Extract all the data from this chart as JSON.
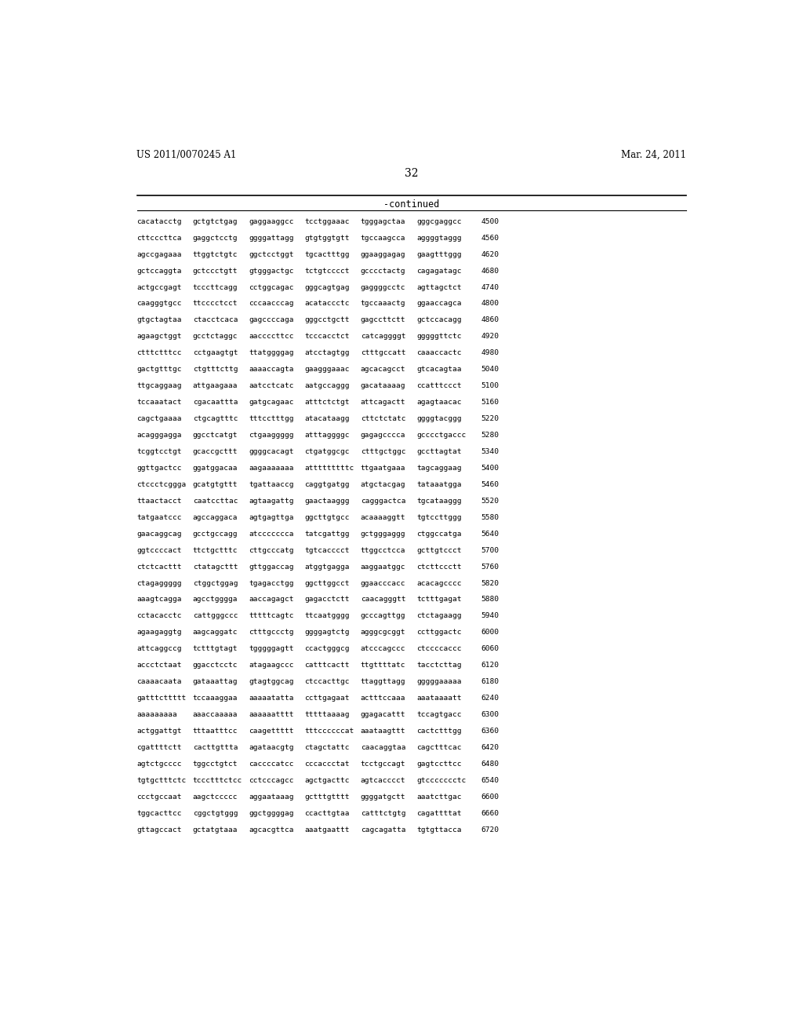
{
  "header_left": "US 2011/0070245 A1",
  "header_right": "Mar. 24, 2011",
  "page_number": "32",
  "continued_label": "-continued",
  "background_color": "#ffffff",
  "text_color": "#000000",
  "sequence_lines": [
    [
      "cacatacctg",
      "gctgtctgag",
      "gaggaaggcc",
      "tcctggaaac",
      "tgggagctaa",
      "gggcgaggcc",
      "4500"
    ],
    [
      "cttcccttca",
      "gaggctcctg",
      "ggggattagg",
      "gtgtggtgtt",
      "tgccaagcca",
      "aggggtaggg",
      "4560"
    ],
    [
      "agccgagaaa",
      "ttggtctgtc",
      "ggctcctggt",
      "tgcactttgg",
      "ggaaggagag",
      "gaagtttggg",
      "4620"
    ],
    [
      "gctccaggta",
      "gctccctgtt",
      "gtgggactgc",
      "tctgtcccct",
      "gcccctactg",
      "cagagatagc",
      "4680"
    ],
    [
      "actgccgagt",
      "tcccttcagg",
      "cctggcagac",
      "gggcagtgag",
      "gaggggcctc",
      "agttagctct",
      "4740"
    ],
    [
      "caagggtgcc",
      "ttcccctcct",
      "cccaacccag",
      "acataccctc",
      "tgccaaactg",
      "ggaaccagca",
      "4800"
    ],
    [
      "gtgctagtaa",
      "ctacctcaca",
      "gagccccaga",
      "gggcctgctt",
      "gagccttctt",
      "gctccacagg",
      "4860"
    ],
    [
      "agaagctggt",
      "gcctctaggc",
      "aaccccttcc",
      "tcccacctct",
      "catcaggggt",
      "gggggttctc",
      "4920"
    ],
    [
      "ctttctttcc",
      "cctgaagtgt",
      "ttatggggag",
      "atcctagtgg",
      "ctttgccatt",
      "caaaccactc",
      "4980"
    ],
    [
      "gactgtttgc",
      "ctgtttcttg",
      "aaaaccagta",
      "gaagggaaac",
      "agcacagcct",
      "gtcacagtaa",
      "5040"
    ],
    [
      "ttgcaggaag",
      "attgaagaaa",
      "aatcctcatc",
      "aatgccaggg",
      "gacataaaag",
      "ccatttccct",
      "5100"
    ],
    [
      "tccaaatact",
      "cgacaattta",
      "gatgcagaac",
      "atttctctgt",
      "attcagactt",
      "agagtaacac",
      "5160"
    ],
    [
      "cagctgaaaa",
      "ctgcagtttc",
      "tttcctttgg",
      "atacataagg",
      "cttctctatc",
      "ggggtacggg",
      "5220"
    ],
    [
      "acagggagga",
      "ggcctcatgt",
      "ctgaaggggg",
      "atttaggggc",
      "gagagcccca",
      "gcccctgaccc",
      "5280"
    ],
    [
      "tcggtcctgt",
      "gcaccgcttt",
      "ggggcacagt",
      "ctgatggcgc",
      "ctttgctggc",
      "gccttagtat",
      "5340"
    ],
    [
      "ggttgactcc",
      "ggatggacaa",
      "aagaaaaaaa",
      "atttttttttc",
      "ttgaatgaaa",
      "tagcaggaag",
      "5400"
    ],
    [
      "ctccctcggga",
      "gcatgtgttt",
      "tgattaaccg",
      "caggtgatgg",
      "atgctacgag",
      "tataaatgga",
      "5460"
    ],
    [
      "ttaactacct",
      "caatccttac",
      "agtaagattg",
      "gaactaaggg",
      "cagggactca",
      "tgcataaggg",
      "5520"
    ],
    [
      "tatgaatccc",
      "agccaggaca",
      "agtgagttga",
      "ggcttgtgcc",
      "acaaaaggtt",
      "tgtccttggg",
      "5580"
    ],
    [
      "gaacaggcag",
      "gcctgccagg",
      "atccccccca",
      "tatcgattgg",
      "gctgggaggg",
      "ctggccatga",
      "5640"
    ],
    [
      "ggtccccact",
      "ttctgctttc",
      "cttgcccatg",
      "tgtcacccct",
      "ttggcctcca",
      "gcttgtccct",
      "5700"
    ],
    [
      "ctctcacttt",
      "ctatagcttt",
      "gttggaccag",
      "atggtgagga",
      "aaggaatggc",
      "ctcttccctt",
      "5760"
    ],
    [
      "ctagaggggg",
      "ctggctggag",
      "tgagacctgg",
      "ggcttggcct",
      "ggaacccacc",
      "acacagcccc",
      "5820"
    ],
    [
      "aaagtcagga",
      "agcctgggga",
      "aaccagagct",
      "gagacctctt",
      "caacagggtt",
      "tctttgagat",
      "5880"
    ],
    [
      "cctacacctc",
      "cattgggccc",
      "tttttcagtc",
      "ttcaatgggg",
      "gcccagttgg",
      "ctctagaagg",
      "5940"
    ],
    [
      "agaagaggtg",
      "aagcaggatc",
      "ctttgccctg",
      "ggggagtctg",
      "agggcgcggt",
      "ccttggactc",
      "6000"
    ],
    [
      "attcaggccg",
      "tctttgtagt",
      "tgggggagtt",
      "ccactgggcg",
      "atcccagccc",
      "ctccccaccc",
      "6060"
    ],
    [
      "accctctaat",
      "ggacctcctc",
      "atagaagccc",
      "catttcactt",
      "ttgttttatc",
      "tacctcttag",
      "6120"
    ],
    [
      "caaaacaata",
      "gataaattag",
      "gtagtggcag",
      "ctccacttgc",
      "ttaggttagg",
      "gggggaaaaa",
      "6180"
    ],
    [
      "gatttcttttt",
      "tccaaaggaa",
      "aaaaatatta",
      "ccttgagaat",
      "actttccaaa",
      "aaataaaatt",
      "6240"
    ],
    [
      "aaaaaaaaa",
      "aaaccaaaaa",
      "aaaaaatttt",
      "tttttaaaag",
      "ggagacattt",
      "tccagtgacc",
      "6300"
    ],
    [
      "actggattgt",
      "tttaatttcc",
      "caagettttt",
      "tttccccccat",
      "aaataagttt",
      "cactctttgg",
      "6360"
    ],
    [
      "cgattttctt",
      "cacttgttta",
      "agataacgtg",
      "ctagctattc",
      "caacaggtaa",
      "cagctttcac",
      "6420"
    ],
    [
      "agtctgcccc",
      "tggcctgtct",
      "caccccatcc",
      "cccaccctat",
      "tcctgccagt",
      "gagtccttcc",
      "6480"
    ],
    [
      "tgtgctttctc",
      "tccctttctcc",
      "cctcccagcc",
      "agctgacttc",
      "agtcacccct",
      "gtccccccctc",
      "6540"
    ],
    [
      "ccctgccaat",
      "aagctccccc",
      "aggaataaag",
      "gctttgtttt",
      "ggggatgctt",
      "aaatcttgac",
      "6600"
    ],
    [
      "tggcacttcc",
      "cggctgtggg",
      "ggctggggag",
      "ccacttgtaa",
      "catttctgtg",
      "cagattttat",
      "6660"
    ],
    [
      "gttagccact",
      "gctatgtaaa",
      "agcacgttca",
      "aaatgaattt",
      "cagcagatta",
      "tgtgttacca",
      "6720"
    ]
  ]
}
